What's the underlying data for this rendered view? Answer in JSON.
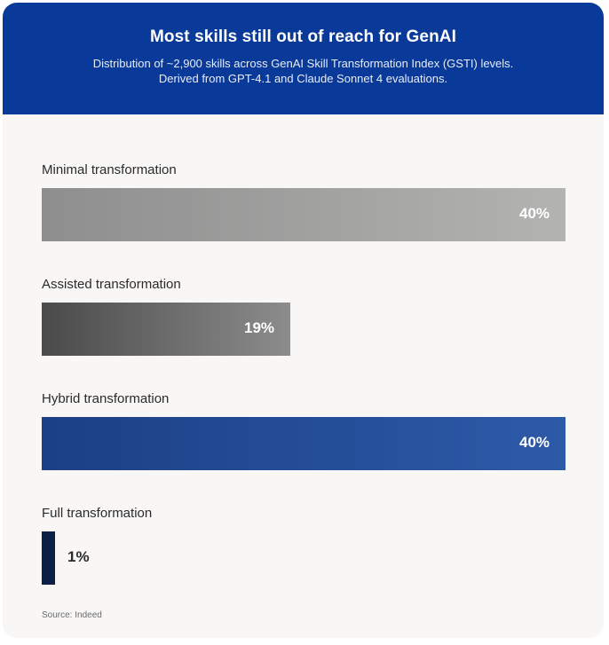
{
  "header": {
    "title": "Most skills still out of reach for GenAI",
    "subtitle_line1": "Distribution of ~2,900 skills across GenAI Skill Transformation Index (GSTI) levels.",
    "subtitle_line2": "Derived from GPT-4.1 and Claude Sonnet 4 evaluations."
  },
  "chart_data": {
    "type": "bar",
    "orientation": "horizontal",
    "title": "Most skills still out of reach for GenAI",
    "categories": [
      "Minimal transformation",
      "Assisted transformation",
      "Hybrid transformation",
      "Full transformation"
    ],
    "values": [
      40,
      19,
      40,
      1
    ],
    "value_labels": [
      "40%",
      "19%",
      "40%",
      "1%"
    ],
    "unit": "%",
    "xlim": [
      0,
      40
    ],
    "grid": false,
    "bar_colors": [
      [
        "#8e8e8e",
        "#b3b3b1"
      ],
      [
        "#4a4a4a",
        "#8c8c8c"
      ],
      [
        "#1c3f86",
        "#2d5aa8"
      ],
      [
        "#0c1f45",
        "#0c1f45"
      ]
    ]
  },
  "footer": {
    "source": "Source: Indeed"
  },
  "colors": {
    "header_bg": "#0a3a99",
    "card_bg": "#f8f7f6"
  }
}
